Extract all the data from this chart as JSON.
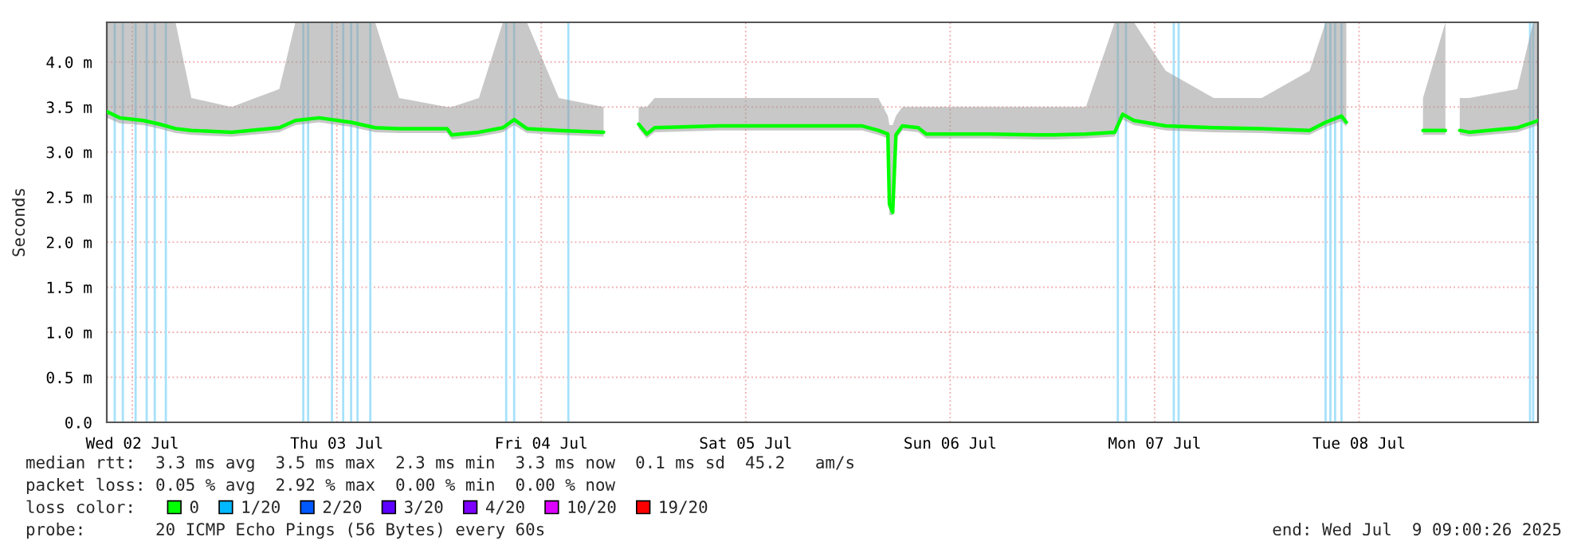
{
  "chart_data": {
    "type": "line",
    "ylabel": "Seconds",
    "x": [
      "2025-07-02T09:00",
      "2025-07-02T10:30",
      "2025-07-02T13:18",
      "2025-07-02T15:11",
      "2025-07-02T17:04",
      "2025-07-02T18:56",
      "2025-07-02T23:38",
      "2025-07-03T05:15",
      "2025-07-03T07:08",
      "2025-07-03T09:56",
      "2025-07-03T13:41",
      "2025-07-03T16:30",
      "2025-07-03T19:19",
      "2025-07-04T00:56",
      "2025-07-04T01:30",
      "2025-07-04T04:41",
      "2025-07-04T07:30",
      "2025-07-04T08:49",
      "2025-07-04T10:19",
      "2025-07-04T14:04",
      "2025-07-04T19:19",
      "2025-07-04T21:34",
      "2025-07-04T23:26",
      "2025-07-05T00:23",
      "2025-07-05T01:19",
      "2025-07-05T08:49",
      "2025-07-05T18:11",
      "2025-07-06T01:41",
      "2025-07-06T03:34",
      "2025-07-06T04:41",
      "2025-07-06T04:52",
      "2025-07-06T05:15",
      "2025-07-06T05:38",
      "2025-07-06T06:23",
      "2025-07-06T08:15",
      "2025-07-06T09:11",
      "2025-07-06T16:41",
      "2025-07-06T22:19",
      "2025-07-07T00:11",
      "2025-07-07T03:56",
      "2025-07-07T07:19",
      "2025-07-07T08:15",
      "2025-07-07T09:34",
      "2025-07-07T13:19",
      "2025-07-07T18:56",
      "2025-07-08T00:34",
      "2025-07-08T06:11",
      "2025-07-08T08:04",
      "2025-07-08T09:56",
      "2025-07-08T10:30",
      "2025-07-08T13:41",
      "2025-07-08T19:30",
      "2025-07-08T22:08",
      "2025-07-08T23:04",
      "2025-07-08T23:49",
      "2025-07-09T00:56",
      "2025-07-09T06:34",
      "2025-07-09T08:26",
      "2025-07-09T09:00"
    ],
    "series": [
      {
        "name": "0",
        "color": "#00ff00",
        "values": [
          3.45,
          3.38,
          3.35,
          3.31,
          3.26,
          3.24,
          3.22,
          3.27,
          3.35,
          3.38,
          3.33,
          3.27,
          3.26,
          3.26,
          3.19,
          3.22,
          3.27,
          3.36,
          3.26,
          3.24,
          3.22,
          null,
          3.31,
          3.2,
          3.27,
          3.29,
          3.29,
          3.29,
          3.24,
          3.2,
          2.42,
          2.33,
          3.19,
          3.29,
          3.27,
          3.2,
          3.2,
          3.19,
          3.19,
          3.2,
          3.22,
          3.42,
          3.35,
          3.29,
          3.27,
          3.26,
          3.24,
          3.33,
          3.4,
          3.33,
          null,
          3.24,
          3.24,
          null,
          3.24,
          3.22,
          3.27,
          3.33,
          3.35
        ],
        "lower": [
          3.38,
          3.32,
          3.3,
          3.26,
          3.21,
          3.19,
          3.17,
          3.22,
          3.3,
          3.33,
          3.28,
          3.22,
          3.21,
          3.21,
          3.14,
          3.17,
          3.22,
          3.3,
          3.21,
          3.19,
          3.17,
          null,
          3.26,
          3.15,
          3.22,
          3.24,
          3.24,
          3.24,
          3.19,
          3.15,
          2.3,
          2.3,
          3.14,
          3.24,
          3.22,
          3.15,
          3.15,
          3.14,
          3.14,
          3.15,
          3.17,
          3.36,
          3.3,
          3.24,
          3.22,
          3.21,
          3.19,
          3.28,
          3.34,
          3.28,
          null,
          3.19,
          3.19,
          null,
          3.19,
          3.17,
          3.22,
          3.28,
          3.3
        ],
        "upper": [
          4.44,
          4.44,
          4.44,
          4.44,
          4.44,
          3.6,
          3.5,
          3.7,
          4.44,
          4.44,
          4.44,
          4.44,
          3.6,
          3.5,
          3.5,
          3.6,
          4.44,
          4.44,
          4.44,
          3.6,
          3.5,
          null,
          3.5,
          3.5,
          3.6,
          3.6,
          3.6,
          3.6,
          3.6,
          3.4,
          3.3,
          3.3,
          3.4,
          3.5,
          3.5,
          3.5,
          3.5,
          3.5,
          3.5,
          3.5,
          4.44,
          4.44,
          4.44,
          3.9,
          3.6,
          3.6,
          3.9,
          4.44,
          4.44,
          4.44,
          null,
          3.6,
          4.44,
          null,
          3.6,
          3.6,
          3.7,
          4.44,
          4.44
        ]
      },
      {
        "name": "1/20",
        "color": "#00b8ff",
        "values": [
          null,
          null,
          null,
          null,
          null,
          null,
          null,
          null,
          null,
          null,
          null,
          null,
          null,
          null,
          null,
          null,
          null,
          null,
          null,
          null,
          null,
          null,
          null,
          null,
          null,
          null,
          null,
          null,
          null,
          null,
          null,
          null,
          null,
          null,
          null,
          null,
          null,
          null,
          null,
          null,
          null,
          null,
          null,
          null,
          null,
          null,
          null,
          null,
          null,
          null,
          null,
          null,
          null,
          null,
          null,
          null,
          null,
          null,
          null
        ]
      },
      {
        "name": "2/20",
        "color": "#0059ff",
        "values": [
          null,
          null,
          null,
          null,
          null,
          null,
          null,
          null,
          null,
          null,
          null,
          null,
          null,
          null,
          null,
          null,
          null,
          null,
          null,
          null,
          null,
          null,
          null,
          null,
          null,
          null,
          null,
          null,
          null,
          null,
          null,
          null,
          null,
          null,
          null,
          null,
          null,
          null,
          null,
          null,
          null,
          null,
          null,
          null,
          null,
          null,
          null,
          null,
          null,
          null,
          null,
          null,
          null,
          null,
          null,
          null,
          null,
          null,
          null
        ]
      },
      {
        "name": "3/20",
        "color": "#5e00ff",
        "values": [
          null,
          null,
          null,
          null,
          null,
          null,
          null,
          null,
          null,
          null,
          null,
          null,
          null,
          null,
          null,
          null,
          null,
          null,
          null,
          null,
          null,
          null,
          null,
          null,
          null,
          null,
          null,
          null,
          null,
          null,
          null,
          null,
          null,
          null,
          null,
          null,
          null,
          null,
          null,
          null,
          null,
          null,
          null,
          null,
          null,
          null,
          null,
          null,
          null,
          null,
          null,
          null,
          null,
          null,
          null,
          null,
          null,
          null,
          null
        ]
      },
      {
        "name": "4/20",
        "color": "#7e00ff",
        "values": [
          null,
          null,
          null,
          null,
          null,
          null,
          null,
          null,
          null,
          null,
          null,
          null,
          null,
          null,
          null,
          null,
          null,
          null,
          null,
          null,
          null,
          null,
          null,
          null,
          null,
          null,
          null,
          null,
          null,
          null,
          null,
          null,
          null,
          null,
          null,
          null,
          null,
          null,
          null,
          null,
          null,
          null,
          null,
          null,
          null,
          null,
          null,
          null,
          null,
          null,
          null,
          null,
          null,
          null,
          null,
          null,
          null,
          null,
          null
        ]
      },
      {
        "name": "10/20",
        "color": "#dd00ff",
        "values": [
          null,
          null,
          null,
          null,
          null,
          null,
          null,
          null,
          null,
          null,
          null,
          null,
          null,
          null,
          null,
          null,
          null,
          null,
          null,
          null,
          null,
          null,
          null,
          null,
          null,
          null,
          null,
          null,
          null,
          null,
          null,
          null,
          null,
          null,
          null,
          null,
          null,
          null,
          null,
          null,
          null,
          null,
          null,
          null,
          null,
          null,
          null,
          null,
          null,
          null,
          null,
          null,
          null,
          null,
          null,
          null,
          null,
          null,
          null
        ]
      },
      {
        "name": "19/20",
        "color": "#ff0000",
        "values": [
          null,
          null,
          null,
          null,
          null,
          null,
          null,
          null,
          null,
          null,
          null,
          null,
          null,
          null,
          null,
          null,
          null,
          null,
          null,
          null,
          null,
          null,
          null,
          null,
          null,
          null,
          null,
          null,
          null,
          null,
          null,
          null,
          null,
          null,
          null,
          null,
          null,
          null,
          null,
          null,
          null,
          null,
          null,
          null,
          null,
          null,
          null,
          null,
          null,
          null,
          null,
          null,
          null,
          null,
          null,
          null,
          null,
          null,
          null
        ]
      }
    ],
    "xlim": [
      "2025-07-02T09:00",
      "2025-07-09T09:00"
    ],
    "xticks": [
      {
        "value": "2025-07-02T12:00",
        "label": "Wed 02 Jul"
      },
      {
        "value": "2025-07-03T12:00",
        "label": "Thu 03 Jul"
      },
      {
        "value": "2025-07-04T12:00",
        "label": "Fri 04 Jul"
      },
      {
        "value": "2025-07-05T12:00",
        "label": "Sat 05 Jul"
      },
      {
        "value": "2025-07-06T12:00",
        "label": "Sun 06 Jul"
      },
      {
        "value": "2025-07-07T12:00",
        "label": "Mon 07 Jul"
      },
      {
        "value": "2025-07-08T12:00",
        "label": "Tue 08 Jul"
      }
    ],
    "ylim": [
      0,
      4.44
    ],
    "yticks": [
      {
        "value": 0,
        "label": "0.0"
      },
      {
        "value": 0.5,
        "label": "0.5 m"
      },
      {
        "value": 1,
        "label": "1.0 m"
      },
      {
        "value": 1.5,
        "label": "1.5 m"
      },
      {
        "value": 2,
        "label": "2.0 m"
      },
      {
        "value": 2.5,
        "label": "2.5 m"
      },
      {
        "value": 3,
        "label": "3.0 m"
      },
      {
        "value": 3.5,
        "label": "3.5 m"
      },
      {
        "value": 4,
        "label": "4.0 m"
      }
    ],
    "grid": true,
    "legend": "bottom",
    "ref_lines": [
      {
        "axis": "x",
        "value": "2025-07-02T09:56",
        "color": "#a6e1fa"
      },
      {
        "axis": "x",
        "value": "2025-07-02T10:53",
        "color": "#a6e1fa"
      },
      {
        "axis": "x",
        "value": "2025-07-02T12:23",
        "color": "#a6e1fa"
      },
      {
        "axis": "x",
        "value": "2025-07-02T13:41",
        "color": "#a6e1fa"
      },
      {
        "axis": "x",
        "value": "2025-07-02T14:38",
        "color": "#a6e1fa"
      },
      {
        "axis": "x",
        "value": "2025-07-02T15:56",
        "color": "#a6e1fa"
      },
      {
        "axis": "x",
        "value": "2025-07-03T08:04",
        "color": "#a6e1fa"
      },
      {
        "axis": "x",
        "value": "2025-07-03T08:38",
        "color": "#a6e1fa"
      },
      {
        "axis": "x",
        "value": "2025-07-03T11:26",
        "color": "#a6e1fa"
      },
      {
        "axis": "x",
        "value": "2025-07-03T12:45",
        "color": "#a6e1fa"
      },
      {
        "axis": "x",
        "value": "2025-07-03T13:41",
        "color": "#a6e1fa"
      },
      {
        "axis": "x",
        "value": "2025-07-03T14:26",
        "color": "#a6e1fa"
      },
      {
        "axis": "x",
        "value": "2025-07-03T15:56",
        "color": "#a6e1fa"
      },
      {
        "axis": "x",
        "value": "2025-07-04T07:53",
        "color": "#a6e1fa"
      },
      {
        "axis": "x",
        "value": "2025-07-04T08:49",
        "color": "#a6e1fa"
      },
      {
        "axis": "x",
        "value": "2025-07-04T15:11",
        "color": "#a6e1fa"
      },
      {
        "axis": "x",
        "value": "2025-07-07T07:41",
        "color": "#a6e1fa"
      },
      {
        "axis": "x",
        "value": "2025-07-07T08:38",
        "color": "#a6e1fa"
      },
      {
        "axis": "x",
        "value": "2025-07-07T14:15",
        "color": "#a6e1fa"
      },
      {
        "axis": "x",
        "value": "2025-07-07T14:49",
        "color": "#a6e1fa"
      },
      {
        "axis": "x",
        "value": "2025-07-08T08:04",
        "color": "#a6e1fa"
      },
      {
        "axis": "x",
        "value": "2025-07-08T08:38",
        "color": "#a6e1fa"
      },
      {
        "axis": "x",
        "value": "2025-07-08T09:11",
        "color": "#a6e1fa"
      },
      {
        "axis": "x",
        "value": "2025-07-08T09:56",
        "color": "#a6e1fa"
      },
      {
        "axis": "x",
        "value": "2025-07-09T08:04",
        "color": "#a6e1fa"
      },
      {
        "axis": "x",
        "value": "2025-07-09T08:26",
        "color": "#a6e1fa"
      }
    ],
    "annotations": [
      "median rtt:  3.3 ms avg  3.5 ms max  2.3 ms min  3.3 ms now  0.1 ms sd  45.2   am/s",
      "packet loss: 0.05 % avg  2.92 % max  0.00 % min  0.00 % now",
      "loss color:",
      "probe:       20 ICMP Echo Pings (56 Bytes) every 60s",
      "end: Wed Jul  9 09:00:26 2025"
    ]
  }
}
